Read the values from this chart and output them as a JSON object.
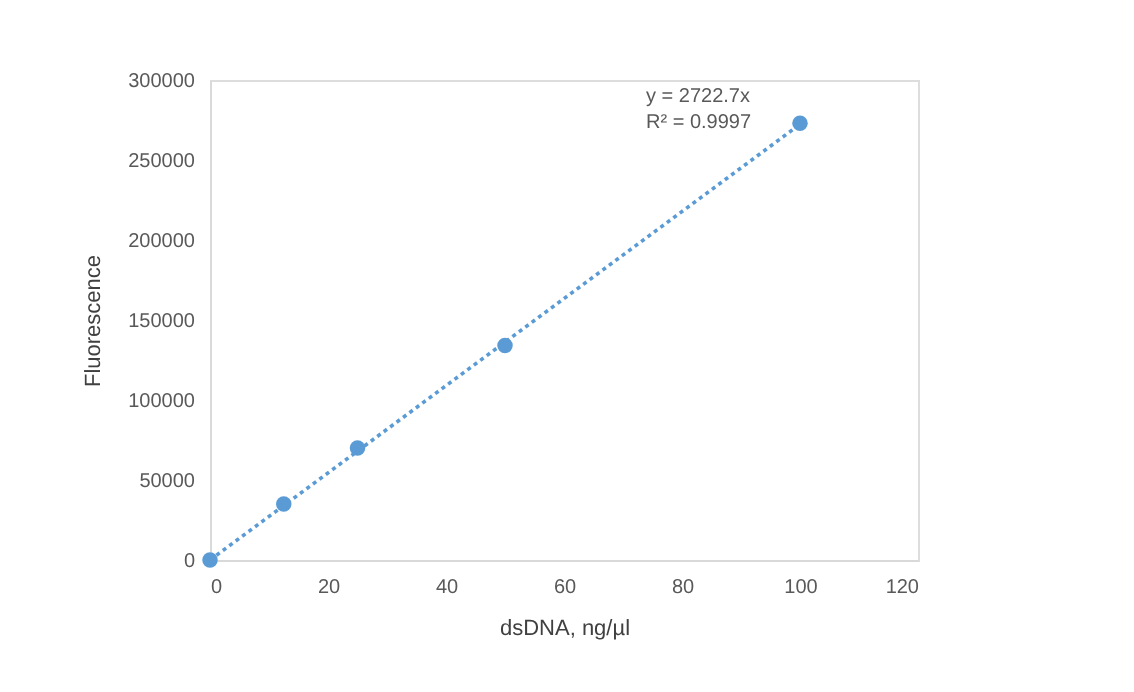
{
  "chart_data": {
    "type": "scatter",
    "xlabel": "dsDNA, ng/µl",
    "ylabel": "Fluorescence",
    "series": [
      {
        "color": "#5b9bd5",
        "x": [
          0,
          12.5,
          25,
          50,
          100
        ],
        "values": [
          0,
          35000,
          70000,
          134000,
          273000
        ],
        "marker": "circle"
      },
      {
        "type": "line",
        "color": "#5b9bd5",
        "x": [
          0,
          100
        ],
        "values": [
          0,
          272300
        ],
        "line_style": "dotted"
      }
    ],
    "annotations": [
      "y = 2722.7x",
      "R² = 0.9997"
    ],
    "xlim": [
      0,
      120
    ],
    "xticks": [
      0,
      20,
      40,
      60,
      80,
      100,
      120
    ],
    "ylim": [
      0,
      300000
    ],
    "yticks": [
      0,
      50000,
      100000,
      150000,
      200000,
      250000,
      300000
    ],
    "grid": false
  }
}
